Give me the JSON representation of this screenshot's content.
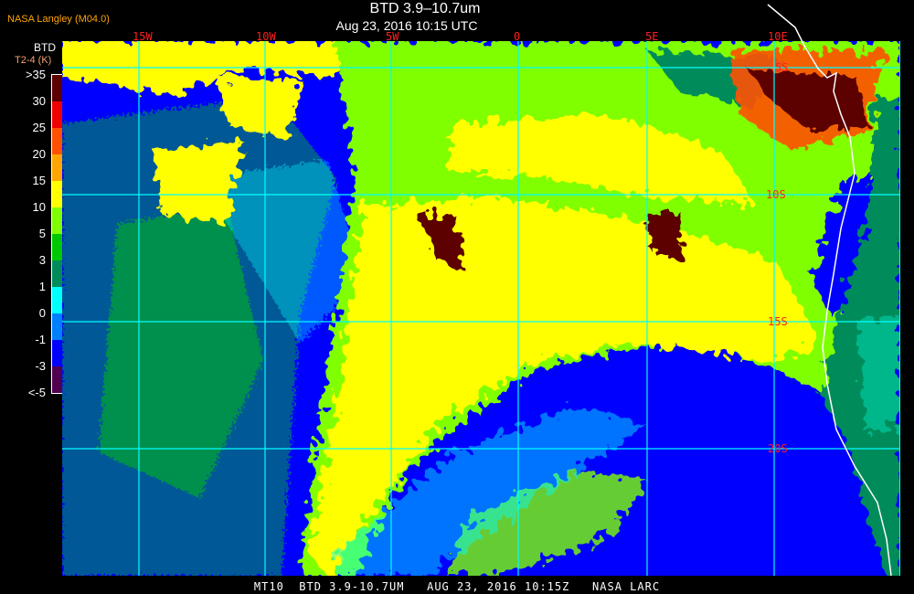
{
  "header": {
    "title": "BTD 3.9–10.7um",
    "subtitle": "Aug 23, 2016 10:15 UTC",
    "credit": "NASA Langley (M04.0)"
  },
  "colorbar": {
    "title": "BTD",
    "units": "T2-4 (K)",
    "labels": [
      ">35",
      "30",
      "25",
      "20",
      "15",
      "10",
      "5",
      "3",
      "1",
      "0",
      "-1",
      "-3",
      "<-5"
    ],
    "colors": [
      "#5c0000",
      "#f00000",
      "#ff5000",
      "#ffa500",
      "#ffff00",
      "#80ff00",
      "#00c800",
      "#008c5a",
      "#00ffff",
      "#0080ff",
      "#0000ff",
      "#500050"
    ]
  },
  "map": {
    "longitude_labels": [
      "15W",
      "10W",
      "5W",
      "0",
      "5E",
      "10E"
    ],
    "latitude_labels": [
      "5S",
      "10S",
      "15S",
      "20S"
    ],
    "grid_color": "#00ffff",
    "coastline_color": "#ffffff"
  },
  "footer": {
    "text": "MT10  BTD 3.9-10.7UM   AUG 23, 2016 10:15Z   NASA LARC"
  }
}
